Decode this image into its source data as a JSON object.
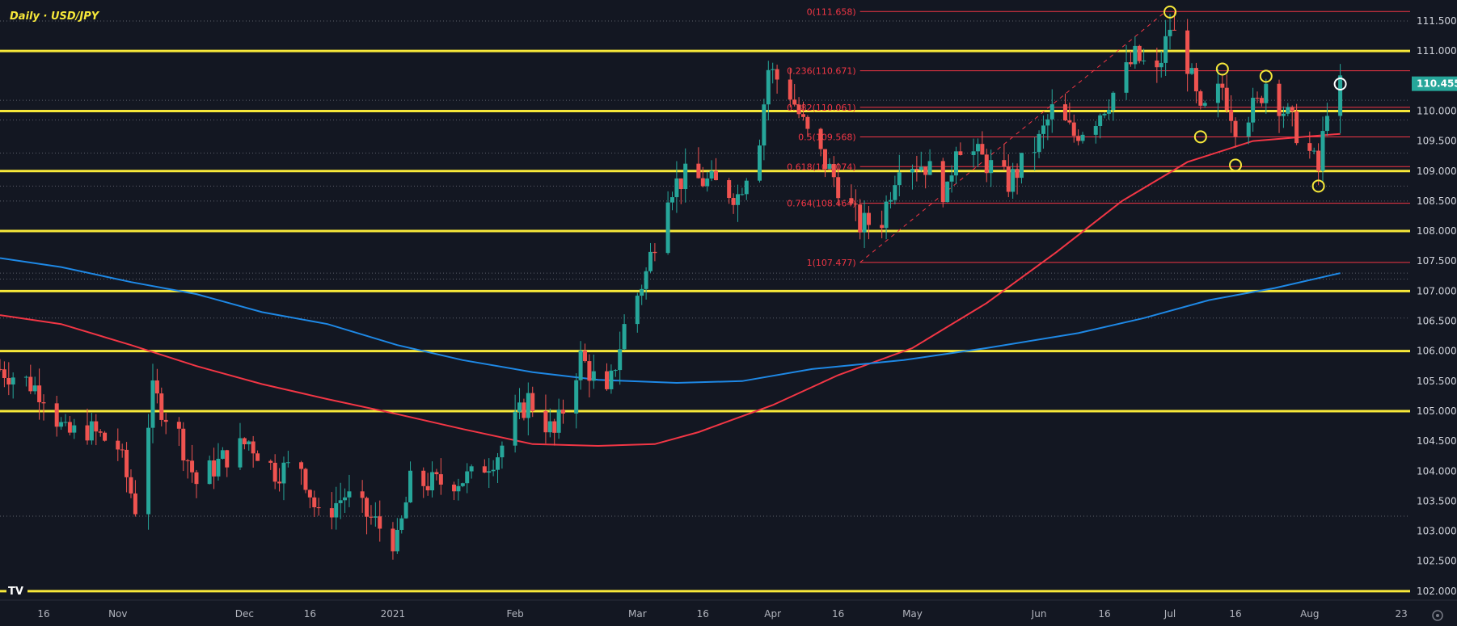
{
  "header": {
    "title": "Daily · USD/JPY"
  },
  "colors": {
    "background": "#131722",
    "grid_dotted": "#5d606b",
    "support_resistance": "#f7e83a",
    "fib": "#f23645",
    "bull_candle": "#26a69a",
    "bear_candle": "#ef5350",
    "ma_red": "#f23645",
    "ma_blue": "#1e88e5",
    "price_badge": "#26a69a",
    "circle_yellow": "#f7e83a",
    "circle_white": "#ffffff"
  },
  "chart_data": {
    "type": "candlestick",
    "title": "Daily · USD/JPY",
    "x_range": [
      "2020-10-06",
      "2021-08-25"
    ],
    "ylim": [
      101.85,
      111.85
    ],
    "y_ticks": [
      "111.500",
      "111.000",
      "110.455",
      "110.000",
      "109.500",
      "109.000",
      "108.500",
      "108.000",
      "107.500",
      "107.000",
      "106.500",
      "106.000",
      "105.500",
      "105.000",
      "104.500",
      "104.000",
      "103.500",
      "103.000",
      "102.500",
      "102.000"
    ],
    "x_ticks": [
      {
        "label": "16",
        "date": "2020-10-16"
      },
      {
        "label": "Nov",
        "date": "2020-11-02"
      },
      {
        "label": "Dec",
        "date": "2020-12-01"
      },
      {
        "label": "16",
        "date": "2020-12-16"
      },
      {
        "label": "2021",
        "date": "2021-01-04"
      },
      {
        "label": "Feb",
        "date": "2021-02-01"
      },
      {
        "label": "Mar",
        "date": "2021-03-01"
      },
      {
        "label": "16",
        "date": "2021-03-16"
      },
      {
        "label": "Apr",
        "date": "2021-04-01"
      },
      {
        "label": "16",
        "date": "2021-04-16"
      },
      {
        "label": "May",
        "date": "2021-05-03"
      },
      {
        "label": "Jun",
        "date": "2021-06-01"
      },
      {
        "label": "16",
        "date": "2021-06-16"
      },
      {
        "label": "Jul",
        "date": "2021-07-01"
      },
      {
        "label": "16",
        "date": "2021-07-16"
      },
      {
        "label": "Aug",
        "date": "2021-08-02"
      },
      {
        "label": "23",
        "date": "2021-08-23"
      }
    ],
    "last_price": {
      "label": "110.455",
      "value": 110.455
    },
    "horizontal_levels": [
      111.0,
      110.0,
      109.0,
      108.0,
      107.0,
      106.0,
      105.0,
      102.0
    ],
    "dotted_levels": [
      111.5,
      110.18,
      109.85,
      109.3,
      108.75,
      108.5,
      107.3,
      107.2,
      106.55,
      103.25
    ],
    "fibonacci": {
      "start_date": "2021-04-21",
      "end_date": "2021-08-25",
      "levels": [
        {
          "ratio": "0",
          "price": 111.658,
          "label": "0(111.658)"
        },
        {
          "ratio": "0.236",
          "price": 110.671,
          "label": "0.236(110.671)"
        },
        {
          "ratio": "0.382",
          "price": 110.061,
          "label": "0.382(110.061)"
        },
        {
          "ratio": "0.5",
          "price": 109.568,
          "label": "0.5(109.568)"
        },
        {
          "ratio": "0.618",
          "price": 109.074,
          "label": "0.618(109.074)"
        },
        {
          "ratio": "0.764",
          "price": 108.464,
          "label": "0.764(108.464)"
        },
        {
          "ratio": "1",
          "price": 107.477,
          "label": "1(107.477)"
        }
      ]
    },
    "fib_trendline": [
      [
        "2021-04-21",
        107.477
      ],
      [
        "2021-06-30",
        111.658
      ]
    ],
    "moving_averages": [
      {
        "color": "#f23645",
        "points": [
          [
            "2020-10-06",
            106.6
          ],
          [
            "2020-10-20",
            106.45
          ],
          [
            "2020-11-05",
            106.1
          ],
          [
            "2020-11-20",
            105.75
          ],
          [
            "2020-12-05",
            105.45
          ],
          [
            "2020-12-20",
            105.2
          ],
          [
            "2021-01-05",
            104.95
          ],
          [
            "2021-01-20",
            104.7
          ],
          [
            "2021-02-05",
            104.45
          ],
          [
            "2021-02-20",
            104.42
          ],
          [
            "2021-03-05",
            104.45
          ],
          [
            "2021-03-15",
            104.65
          ],
          [
            "2021-04-01",
            105.1
          ],
          [
            "2021-04-16",
            105.6
          ],
          [
            "2021-05-03",
            106.05
          ],
          [
            "2021-05-20",
            106.8
          ],
          [
            "2021-06-05",
            107.65
          ],
          [
            "2021-06-20",
            108.5
          ],
          [
            "2021-07-05",
            109.15
          ],
          [
            "2021-07-20",
            109.5
          ],
          [
            "2021-08-09",
            109.62
          ]
        ]
      },
      {
        "color": "#1e88e5",
        "points": [
          [
            "2020-10-06",
            107.55
          ],
          [
            "2020-10-20",
            107.4
          ],
          [
            "2020-11-05",
            107.15
          ],
          [
            "2020-11-20",
            106.95
          ],
          [
            "2020-12-05",
            106.65
          ],
          [
            "2020-12-20",
            106.45
          ],
          [
            "2021-01-05",
            106.1
          ],
          [
            "2021-01-20",
            105.85
          ],
          [
            "2021-02-05",
            105.65
          ],
          [
            "2021-02-20",
            105.52
          ],
          [
            "2021-03-10",
            105.47
          ],
          [
            "2021-03-25",
            105.5
          ],
          [
            "2021-04-10",
            105.7
          ],
          [
            "2021-05-01",
            105.85
          ],
          [
            "2021-05-20",
            106.05
          ],
          [
            "2021-06-10",
            106.3
          ],
          [
            "2021-06-25",
            106.55
          ],
          [
            "2021-07-10",
            106.85
          ],
          [
            "2021-07-25",
            107.05
          ],
          [
            "2021-08-09",
            107.3
          ]
        ]
      }
    ],
    "circles": [
      {
        "date": "2021-07-01",
        "price": 111.65,
        "color": "#f7e83a"
      },
      {
        "date": "2021-07-13",
        "price": 110.7,
        "color": "#f7e83a"
      },
      {
        "date": "2021-07-08",
        "price": 109.57,
        "color": "#f7e83a"
      },
      {
        "date": "2021-07-16",
        "price": 109.1,
        "color": "#f7e83a"
      },
      {
        "date": "2021-07-23",
        "price": 110.58,
        "color": "#f7e83a"
      },
      {
        "date": "2021-08-04",
        "price": 108.75,
        "color": "#f7e83a"
      },
      {
        "date": "2021-08-09",
        "price": 110.45,
        "color": "#ffffff"
      }
    ],
    "ohlc_anchors": [
      [
        "2020-10-06",
        105.7
      ],
      [
        "2020-10-12",
        105.5
      ],
      [
        "2020-10-16",
        105.3
      ],
      [
        "2020-10-21",
        104.6
      ],
      [
        "2020-10-26",
        104.7
      ],
      [
        "2020-11-02",
        104.4
      ],
      [
        "2020-11-06",
        103.4
      ],
      [
        "2020-11-10",
        105.3
      ],
      [
        "2020-11-16",
        104.6
      ],
      [
        "2020-11-20",
        103.8
      ],
      [
        "2020-11-26",
        104.2
      ],
      [
        "2020-12-02",
        104.5
      ],
      [
        "2020-12-08",
        104.0
      ],
      [
        "2020-12-14",
        104.1
      ],
      [
        "2020-12-18",
        103.2
      ],
      [
        "2020-12-24",
        103.6
      ],
      [
        "2020-12-30",
        103.2
      ],
      [
        "2021-01-05",
        102.8
      ],
      [
        "2021-01-08",
        103.8
      ],
      [
        "2021-01-14",
        103.8
      ],
      [
        "2021-01-22",
        103.9
      ],
      [
        "2021-01-28",
        104.3
      ],
      [
        "2021-02-04",
        105.2
      ],
      [
        "2021-02-10",
        104.6
      ],
      [
        "2021-02-16",
        105.9
      ],
      [
        "2021-02-22",
        105.2
      ],
      [
        "2021-02-26",
        106.4
      ],
      [
        "2021-03-03",
        107.3
      ],
      [
        "2021-03-08",
        108.7
      ],
      [
        "2021-03-12",
        108.9
      ],
      [
        "2021-03-18",
        108.8
      ],
      [
        "2021-03-24",
        108.6
      ],
      [
        "2021-03-29",
        109.6
      ],
      [
        "2021-03-31",
        110.7
      ],
      [
        "2021-04-05",
        110.3
      ],
      [
        "2021-04-09",
        109.6
      ],
      [
        "2021-04-15",
        108.9
      ],
      [
        "2021-04-21",
        108.1
      ],
      [
        "2021-04-26",
        108.2
      ],
      [
        "2021-04-30",
        109.2
      ],
      [
        "2021-05-06",
        109.1
      ],
      [
        "2021-05-11",
        108.6
      ],
      [
        "2021-05-13",
        109.5
      ],
      [
        "2021-05-19",
        109.2
      ],
      [
        "2021-05-25",
        108.8
      ],
      [
        "2021-06-01",
        109.5
      ],
      [
        "2021-06-04",
        110.0
      ],
      [
        "2021-06-09",
        109.6
      ],
      [
        "2021-06-14",
        109.9
      ],
      [
        "2021-06-18",
        110.3
      ],
      [
        "2021-06-23",
        110.9
      ],
      [
        "2021-06-28",
        110.6
      ],
      [
        "2021-07-01",
        111.4
      ],
      [
        "2021-07-05",
        110.8
      ],
      [
        "2021-07-08",
        109.9
      ],
      [
        "2021-07-13",
        110.4
      ],
      [
        "2021-07-16",
        109.8
      ],
      [
        "2021-07-21",
        110.1
      ],
      [
        "2021-07-23",
        110.5
      ],
      [
        "2021-07-28",
        109.9
      ],
      [
        "2021-08-02",
        109.3
      ],
      [
        "2021-08-04",
        109.0
      ],
      [
        "2021-08-06",
        110.1
      ],
      [
        "2021-08-09",
        110.4
      ]
    ]
  }
}
